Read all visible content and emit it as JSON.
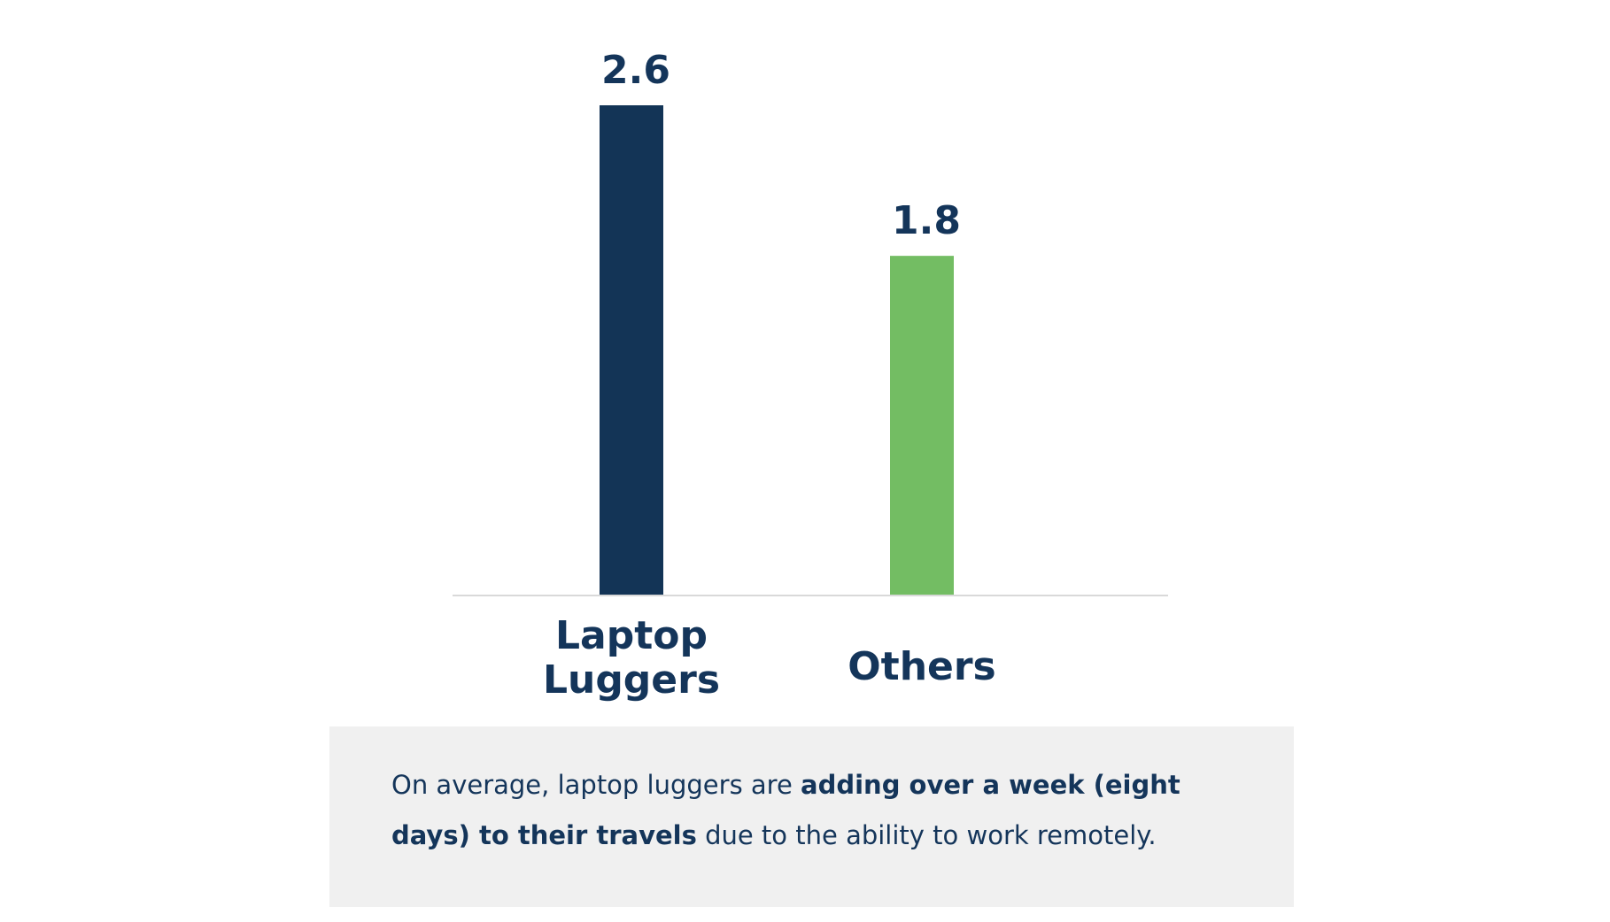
{
  "chart_data": {
    "type": "bar",
    "categories": [
      "Laptop Luggers",
      "Others"
    ],
    "category_lines": [
      [
        "Laptop",
        "Luggers"
      ],
      [
        "Others"
      ]
    ],
    "values": [
      2.6,
      1.8
    ],
    "data_labels": [
      "2.6",
      "1.8"
    ],
    "bar_colors": [
      "#133456",
      "#73bd63"
    ],
    "title": "",
    "xlabel": "",
    "ylabel": "",
    "ylim": [
      0,
      2.6
    ],
    "grid": false,
    "legend": "none",
    "baseline_color": "#d9d9d9",
    "text_color": "#14355a"
  },
  "note": {
    "text_1": "On average, laptop luggers are ",
    "bold_1": "adding over a week (eight days) to their travels",
    "text_2": " due to the ability to work remotely."
  }
}
